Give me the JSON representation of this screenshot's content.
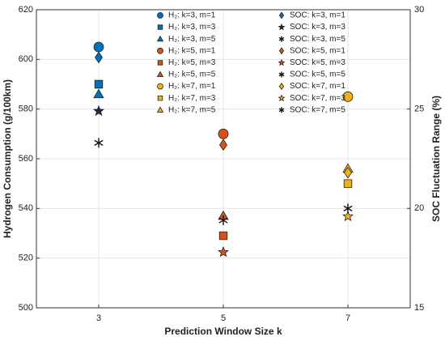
{
  "chart_data": {
    "type": "scatter",
    "xlabel": "Prediction Window Size k",
    "ylabel": "Hydrogen Consumption (g/100km)",
    "y2label": "SOC Fluctuation Range (%)",
    "xlim": [
      2,
      8
    ],
    "xticks": [
      3,
      5,
      7
    ],
    "ylim": [
      500,
      620
    ],
    "yticks": [
      500,
      520,
      540,
      560,
      580,
      600,
      620
    ],
    "y2lim": [
      15,
      30
    ],
    "y2ticks": [
      15,
      20,
      25,
      30
    ],
    "grid": true,
    "legend": "top",
    "series": [
      {
        "name": "H₂: k=3, m=1",
        "color": "#0072BD",
        "marker": "circle",
        "x": [
          3
        ],
        "values": [
          605
        ]
      },
      {
        "name": "H₂: k=3, m=3",
        "color": "#0072BD",
        "marker": "square",
        "x": [
          3
        ],
        "values": [
          590
        ]
      },
      {
        "name": "H₂: k=3, m=5",
        "color": "#0072BD",
        "marker": "triangle",
        "x": [
          3
        ],
        "values": [
          586
        ]
      },
      {
        "name": "H₂: k=5, m=1",
        "color": "#D95319",
        "marker": "circle",
        "x": [
          5
        ],
        "values": [
          570
        ]
      },
      {
        "name": "H₂: k=5, m=3",
        "color": "#D95319",
        "marker": "square",
        "x": [
          5
        ],
        "values": [
          529
        ]
      },
      {
        "name": "H₂: k=5, m=5",
        "color": "#D95319",
        "marker": "triangle",
        "x": [
          5
        ],
        "values": [
          537
        ]
      },
      {
        "name": "H₂: k=7, m=1",
        "color": "#EDB120",
        "marker": "circle",
        "x": [
          7
        ],
        "values": [
          585
        ]
      },
      {
        "name": "H₂: k=7, m=3",
        "color": "#EDB120",
        "marker": "square",
        "x": [
          7
        ],
        "values": [
          550
        ]
      },
      {
        "name": "H₂: k=7, m=5",
        "color": "#EDB120",
        "marker": "triangle",
        "x": [
          7
        ],
        "values": [
          556
        ]
      },
      {
        "name": "SOC: k=3, m=1",
        "color": "#0072BD",
        "marker": "diamond",
        "axis": "y2",
        "x": [
          3
        ],
        "values": [
          27.6
        ]
      },
      {
        "name": "SOC: k=3, m=3",
        "color": "#1a2a4a",
        "marker": "star",
        "axis": "y2",
        "x": [
          3
        ],
        "values": [
          24.9
        ]
      },
      {
        "name": "SOC: k=3, m=5",
        "color": "#111111",
        "marker": "asterisk",
        "axis": "y2",
        "x": [
          3
        ],
        "values": [
          23.3
        ]
      },
      {
        "name": "SOC: k=5, m=1",
        "color": "#D95319",
        "marker": "diamond",
        "axis": "y2",
        "x": [
          5
        ],
        "values": [
          23.2
        ]
      },
      {
        "name": "SOC: k=5, m=3",
        "color": "#D95319",
        "marker": "star",
        "axis": "y2",
        "x": [
          5
        ],
        "values": [
          17.8
        ]
      },
      {
        "name": "SOC: k=5, m=5",
        "color": "#111111",
        "marker": "asterisk",
        "axis": "y2",
        "x": [
          5
        ],
        "values": [
          19.4
        ]
      },
      {
        "name": "SOC: k=7, m=1",
        "color": "#EDB120",
        "marker": "diamond",
        "axis": "y2",
        "x": [
          7
        ],
        "values": [
          21.8
        ]
      },
      {
        "name": "SOC: k=7, m=3",
        "color": "#EDB120",
        "marker": "star",
        "axis": "y2",
        "x": [
          7
        ],
        "values": [
          19.6
        ]
      },
      {
        "name": "SOC: k=7, m=5",
        "color": "#111111",
        "marker": "asterisk",
        "axis": "y2",
        "x": [
          7
        ],
        "values": [
          20.0
        ]
      }
    ]
  }
}
